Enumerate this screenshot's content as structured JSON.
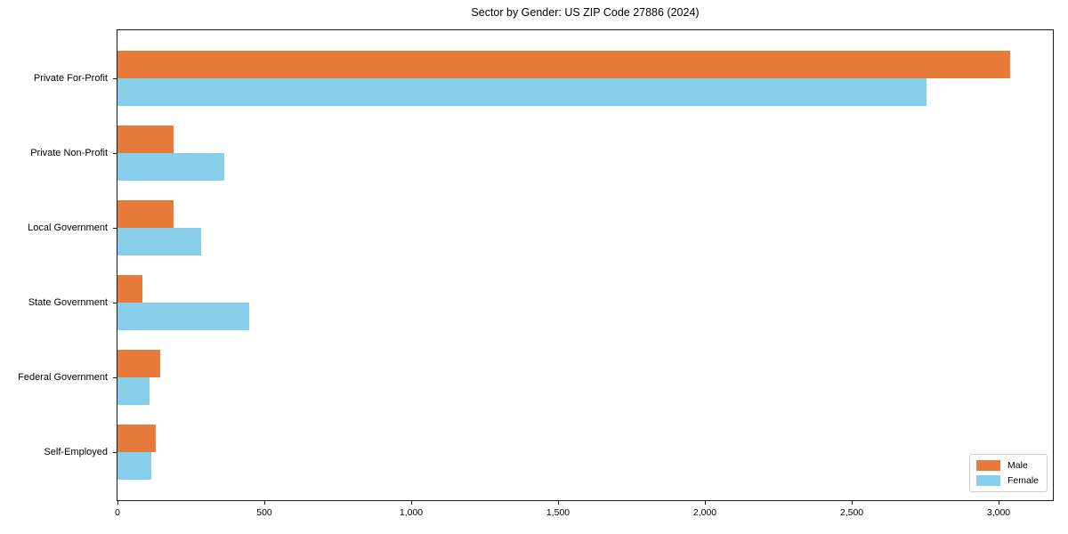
{
  "chart_data": {
    "type": "bar",
    "orientation": "horizontal",
    "title": "Sector by Gender: US ZIP Code 27886 (2024)",
    "categories": [
      "Private For-Profit",
      "Private Non-Profit",
      "Local Government",
      "State Government",
      "Federal Government",
      "Self-Employed"
    ],
    "series": [
      {
        "name": "Male",
        "color": "#e87a3c",
        "values": [
          3040,
          190,
          190,
          85,
          145,
          130
        ]
      },
      {
        "name": "Female",
        "color": "#87ceeb",
        "values": [
          2755,
          365,
          285,
          450,
          110,
          115
        ]
      }
    ],
    "xlabel": "",
    "ylabel": "",
    "xlim": [
      0,
      3185
    ],
    "xticks": [
      {
        "value": 0,
        "label": "0"
      },
      {
        "value": 500,
        "label": "500"
      },
      {
        "value": 1000,
        "label": "1,000"
      },
      {
        "value": 1500,
        "label": "1,500"
      },
      {
        "value": 2000,
        "label": "2,000"
      },
      {
        "value": 2500,
        "label": "2,500"
      },
      {
        "value": 3000,
        "label": "3,000"
      }
    ],
    "grid": false,
    "legend_position": "lower right"
  }
}
